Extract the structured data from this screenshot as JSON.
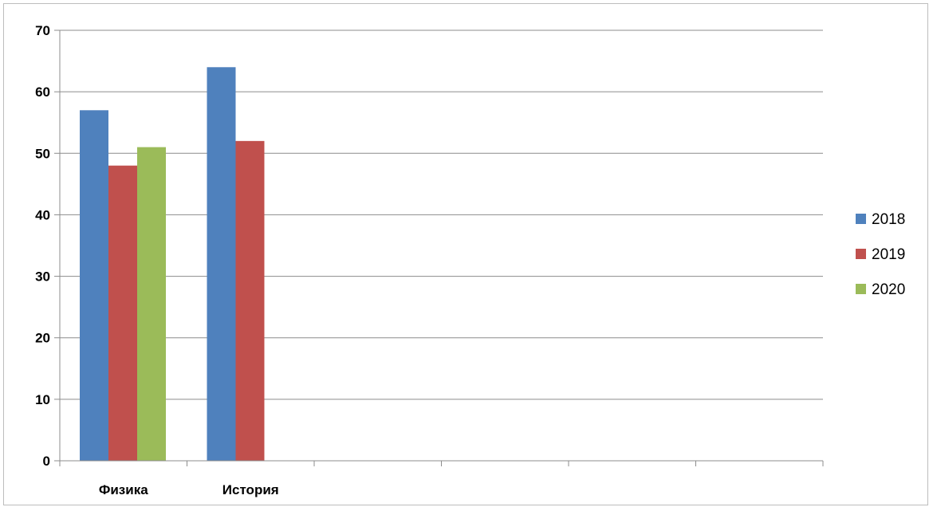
{
  "chart_data": {
    "type": "bar",
    "title": "",
    "xlabel": "",
    "ylabel": "",
    "categories": [
      "Физика",
      "История",
      "",
      "",
      "",
      ""
    ],
    "series": [
      {
        "name": "2018",
        "values": [
          57,
          64,
          null,
          null,
          null,
          null
        ],
        "color": "#4f81bd"
      },
      {
        "name": "2019",
        "values": [
          48,
          52,
          null,
          null,
          null,
          null
        ],
        "color": "#c0504d"
      },
      {
        "name": "2020",
        "values": [
          51,
          null,
          null,
          null,
          null,
          null
        ],
        "color": "#9bbb59"
      }
    ],
    "ylim": [
      0,
      70
    ],
    "yticks": [
      0,
      10,
      20,
      30,
      40,
      50,
      60,
      70
    ],
    "grid": true,
    "legend": "right"
  }
}
